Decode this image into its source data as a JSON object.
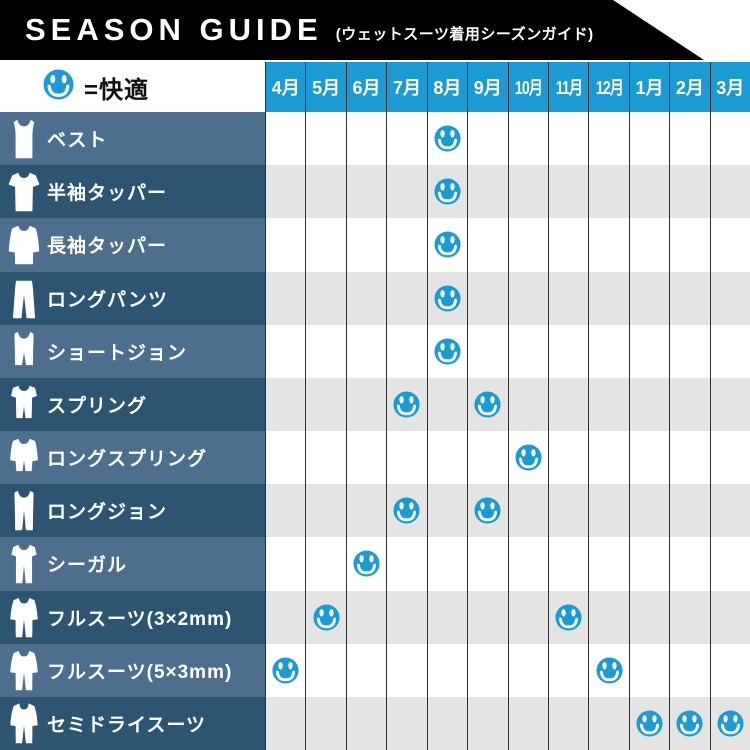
{
  "banner": {
    "title": "SEASON GUIDE",
    "subtitle": "(ウェットスーツ着用シーズンガイド)"
  },
  "legend": {
    "icon": "smiley-icon",
    "label": "=快適"
  },
  "months": [
    "4月",
    "5月",
    "6月",
    "7月",
    "8月",
    "9月",
    "10月",
    "11月",
    "12月",
    "1月",
    "2月",
    "3月"
  ],
  "rows": [
    {
      "label": "ベスト",
      "icon": "vest-icon",
      "comfortable_months": [
        "8月"
      ]
    },
    {
      "label": "半袖タッパー",
      "icon": "short-sleeve-tapper-icon",
      "comfortable_months": [
        "8月"
      ]
    },
    {
      "label": "長袖タッパー",
      "icon": "long-sleeve-tapper-icon",
      "comfortable_months": [
        "8月"
      ]
    },
    {
      "label": "ロングパンツ",
      "icon": "long-pants-icon",
      "comfortable_months": [
        "8月"
      ]
    },
    {
      "label": "ショートジョン",
      "icon": "short-john-icon",
      "comfortable_months": [
        "8月"
      ]
    },
    {
      "label": "スプリング",
      "icon": "spring-suit-icon",
      "comfortable_months": [
        "7月",
        "9月"
      ]
    },
    {
      "label": "ロングスプリング",
      "icon": "long-spring-suit-icon",
      "comfortable_months": [
        "10月"
      ]
    },
    {
      "label": "ロングジョン",
      "icon": "long-john-icon",
      "comfortable_months": [
        "7月",
        "9月"
      ]
    },
    {
      "label": "シーガル",
      "icon": "seagull-suit-icon",
      "comfortable_months": [
        "6月"
      ]
    },
    {
      "label": "フルスーツ(3×2mm)",
      "icon": "fullsuit-icon",
      "comfortable_months": [
        "5月",
        "11月"
      ]
    },
    {
      "label": "フルスーツ(5×3mm)",
      "icon": "fullsuit-icon",
      "comfortable_months": [
        "4月",
        "12月"
      ]
    },
    {
      "label": "セミドライスーツ",
      "icon": "semidry-suit-icon",
      "comfortable_months": [
        "1月",
        "2月",
        "3月"
      ]
    }
  ],
  "colors": {
    "banner_bg": "#000000",
    "accent_blue": "#1B9AD3",
    "label_row_light": "#4D6E8D",
    "label_row_dark": "#2D5571",
    "grid_row_light": "#FFFFFF",
    "grid_row_dark": "#E4E4E4",
    "grid_line": "#2F2F2F",
    "legend_text": "#111111"
  },
  "chart_data": {
    "type": "heatmap",
    "title": "SEASON GUIDE (ウェットスーツ着用シーズンガイド)",
    "legend": "smiley = 快適 (comfortable)",
    "x_categories": [
      "4月",
      "5月",
      "6月",
      "7月",
      "8月",
      "9月",
      "10月",
      "11月",
      "12月",
      "1月",
      "2月",
      "3月"
    ],
    "y_categories": [
      "ベスト",
      "半袖タッパー",
      "長袖タッパー",
      "ロングパンツ",
      "ショートジョン",
      "スプリング",
      "ロングスプリング",
      "ロングジョン",
      "シーガル",
      "フルスーツ(3×2mm)",
      "フルスーツ(5×3mm)",
      "セミドライスーツ"
    ],
    "series": [
      {
        "name": "ベスト",
        "values": [
          0,
          0,
          0,
          0,
          1,
          0,
          0,
          0,
          0,
          0,
          0,
          0
        ]
      },
      {
        "name": "半袖タッパー",
        "values": [
          0,
          0,
          0,
          0,
          1,
          0,
          0,
          0,
          0,
          0,
          0,
          0
        ]
      },
      {
        "name": "長袖タッパー",
        "values": [
          0,
          0,
          0,
          0,
          1,
          0,
          0,
          0,
          0,
          0,
          0,
          0
        ]
      },
      {
        "name": "ロングパンツ",
        "values": [
          0,
          0,
          0,
          0,
          1,
          0,
          0,
          0,
          0,
          0,
          0,
          0
        ]
      },
      {
        "name": "ショートジョン",
        "values": [
          0,
          0,
          0,
          0,
          1,
          0,
          0,
          0,
          0,
          0,
          0,
          0
        ]
      },
      {
        "name": "スプリング",
        "values": [
          0,
          0,
          0,
          1,
          0,
          1,
          0,
          0,
          0,
          0,
          0,
          0
        ]
      },
      {
        "name": "ロングスプリング",
        "values": [
          0,
          0,
          0,
          0,
          0,
          0,
          1,
          0,
          0,
          0,
          0,
          0
        ]
      },
      {
        "name": "ロングジョン",
        "values": [
          0,
          0,
          0,
          1,
          0,
          1,
          0,
          0,
          0,
          0,
          0,
          0
        ]
      },
      {
        "name": "シーガル",
        "values": [
          0,
          0,
          1,
          0,
          0,
          0,
          0,
          0,
          0,
          0,
          0,
          0
        ]
      },
      {
        "name": "フルスーツ(3×2mm)",
        "values": [
          0,
          1,
          0,
          0,
          0,
          0,
          0,
          1,
          0,
          0,
          0,
          0
        ]
      },
      {
        "name": "フルスーツ(5×3mm)",
        "values": [
          1,
          0,
          0,
          0,
          0,
          0,
          0,
          0,
          1,
          0,
          0,
          0
        ]
      },
      {
        "name": "セミドライスーツ",
        "values": [
          0,
          0,
          0,
          0,
          0,
          0,
          0,
          0,
          0,
          1,
          1,
          1
        ]
      }
    ],
    "grid": true,
    "mark_symbol": "smiley-face"
  }
}
